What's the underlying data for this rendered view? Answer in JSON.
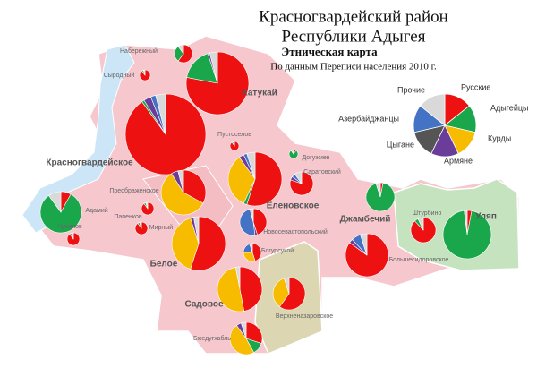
{
  "header": {
    "title": "Красногвардейский район",
    "subtitle": "Республики Адыгея",
    "map_title": "Этническая карта",
    "source": "По данным Переписи населения 2010 г."
  },
  "legend": [
    {
      "name": "Русские",
      "color": "#ee1111"
    },
    {
      "name": "Адыгейцы",
      "color": "#1aa64a"
    },
    {
      "name": "Курды",
      "color": "#f7bb00"
    },
    {
      "name": "Армяне",
      "color": "#6a3d9a"
    },
    {
      "name": "Цыгане",
      "color": "#555555"
    },
    {
      "name": "Азербайджанцы",
      "color": "#4472c4"
    },
    {
      "name": "Прочие",
      "color": "#d9d9d9"
    }
  ],
  "settlements": [
    {
      "name": "Набережный",
      "shares": [
        60,
        30,
        0,
        0,
        0,
        0,
        10
      ]
    },
    {
      "name": "Сыродный",
      "shares": [
        90,
        5,
        0,
        0,
        0,
        0,
        5
      ]
    },
    {
      "name": "Хатукай",
      "shares": [
        78,
        17,
        0,
        1,
        0,
        0,
        4
      ]
    },
    {
      "name": "Красногвардейское",
      "shares": [
        90,
        1,
        0,
        3,
        0,
        2,
        4
      ]
    },
    {
      "name": "Пустоселов",
      "shares": [
        90,
        5,
        0,
        0,
        0,
        0,
        5
      ]
    },
    {
      "name": "Догужиев",
      "shares": [
        10,
        80,
        0,
        0,
        0,
        0,
        10
      ]
    },
    {
      "name": "Саратовский",
      "shares": [
        80,
        0,
        0,
        5,
        0,
        5,
        10
      ]
    },
    {
      "name": "Еленовское",
      "shares": [
        55,
        2,
        33,
        3,
        0,
        2,
        5
      ]
    },
    {
      "name": "Преображенское",
      "shares": [
        33,
        0,
        58,
        5,
        0,
        0,
        4
      ]
    },
    {
      "name": "Адамий",
      "shares": [
        8,
        82,
        0,
        0,
        0,
        0,
        10
      ]
    },
    {
      "name": "Чумаков",
      "shares": [
        90,
        5,
        0,
        0,
        0,
        0,
        5
      ]
    },
    {
      "name": "Папенков",
      "shares": [
        90,
        5,
        0,
        0,
        0,
        0,
        5
      ]
    },
    {
      "name": "Мирный",
      "shares": [
        90,
        5,
        0,
        0,
        0,
        0,
        5
      ]
    },
    {
      "name": "Новосевастопольский",
      "shares": [
        45,
        0,
        0,
        3,
        0,
        48,
        4
      ]
    },
    {
      "name": "Богурсукой",
      "shares": [
        45,
        0,
        30,
        0,
        0,
        20,
        5
      ]
    },
    {
      "name": "Белое",
      "shares": [
        55,
        0,
        40,
        2,
        0,
        0,
        3
      ]
    },
    {
      "name": "Джамбечий",
      "shares": [
        3,
        92,
        0,
        0,
        0,
        0,
        5
      ]
    },
    {
      "name": "Штурбино",
      "shares": [
        88,
        5,
        0,
        0,
        0,
        0,
        7
      ]
    },
    {
      "name": "Уляп",
      "shares": [
        3,
        95,
        0,
        0,
        0,
        0,
        2
      ]
    },
    {
      "name": "Большесидоровское",
      "shares": [
        85,
        0,
        0,
        3,
        0,
        7,
        5
      ]
    },
    {
      "name": "Садовое",
      "shares": [
        47,
        0,
        50,
        0,
        0,
        0,
        3
      ]
    },
    {
      "name": "Верхненазаровское",
      "shares": [
        60,
        0,
        35,
        0,
        0,
        0,
        5
      ]
    },
    {
      "name": "Бжедугхабль",
      "shares": [
        30,
        12,
        48,
        5,
        0,
        0,
        5
      ]
    }
  ]
}
